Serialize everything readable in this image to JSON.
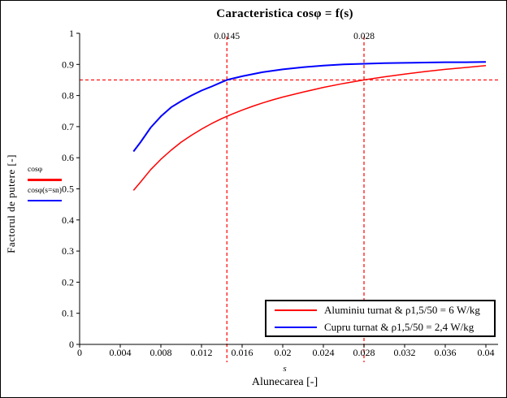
{
  "window": {
    "background_color": "#ffffff",
    "border_color": "#000000"
  },
  "chart": {
    "title": "Caracteristica cosφ = f(s)",
    "ylabel": "Factorul de putere [-]",
    "x_variable": "s",
    "xlabel": "Alunecarea [-]"
  },
  "curve_labels": {
    "items": [
      {
        "label": "cosφ",
        "color": "#ff0000"
      },
      {
        "label": "cosφ(s=sn)",
        "color": "#0000ff"
      }
    ]
  },
  "legend": {
    "items": [
      {
        "label": "Aluminiu turnat & ρ1,5/50 = 6 W/kg",
        "color": "#ff0000"
      },
      {
        "label": "Cupru turnat & ρ1,5/50 = 2,4 W/kg",
        "color": "#0000ff"
      }
    ]
  },
  "chart_data": {
    "type": "line",
    "title": "Caracteristica cosφ = f(s)",
    "xlabel": "Alunecarea [-]",
    "ylabel": "Factorul de putere [-]",
    "xlim": [
      0,
      0.04
    ],
    "ylim": [
      0,
      1
    ],
    "grid": false,
    "legend_position": "bottom-right",
    "x_ticks": [
      0,
      0.004,
      0.008,
      0.012,
      0.016,
      0.02,
      0.024,
      0.028,
      0.032,
      0.036,
      0.04
    ],
    "x_tick_labels": [
      "0",
      "0.004",
      "0.008",
      "0.012",
      "0.016",
      "0.02",
      "0.024",
      "0.028",
      "0.032",
      "0.036",
      "0.04"
    ],
    "y_ticks": [
      0,
      0.1,
      0.2,
      0.3,
      0.4,
      0.5,
      0.6,
      0.7,
      0.8,
      0.9,
      1
    ],
    "y_tick_labels": [
      "0",
      "0.1",
      "0.2",
      "0.3",
      "0.4",
      "0.5",
      "0.6",
      "0.7",
      "0.8",
      "0.9",
      "1"
    ],
    "series": [
      {
        "name": "Aluminiu turnat & ρ1,5/50 = 6 W/kg",
        "color": "#ff0000",
        "width": 1.5,
        "points": [
          [
            0.0053,
            0.495
          ],
          [
            0.006,
            0.522
          ],
          [
            0.007,
            0.562
          ],
          [
            0.008,
            0.595
          ],
          [
            0.009,
            0.624
          ],
          [
            0.01,
            0.65
          ],
          [
            0.011,
            0.672
          ],
          [
            0.012,
            0.692
          ],
          [
            0.013,
            0.71
          ],
          [
            0.014,
            0.726
          ],
          [
            0.015,
            0.74
          ],
          [
            0.016,
            0.753
          ],
          [
            0.017,
            0.765
          ],
          [
            0.018,
            0.776
          ],
          [
            0.019,
            0.786
          ],
          [
            0.02,
            0.795
          ],
          [
            0.022,
            0.811
          ],
          [
            0.024,
            0.826
          ],
          [
            0.026,
            0.839
          ],
          [
            0.028,
            0.85
          ],
          [
            0.03,
            0.86
          ],
          [
            0.032,
            0.869
          ],
          [
            0.034,
            0.877
          ],
          [
            0.036,
            0.884
          ],
          [
            0.038,
            0.89
          ],
          [
            0.04,
            0.896
          ]
        ]
      },
      {
        "name": "Cupru turnat & ρ1,5/50 = 2,4 W/kg",
        "color": "#0000ff",
        "width": 2,
        "points": [
          [
            0.0053,
            0.62
          ],
          [
            0.006,
            0.65
          ],
          [
            0.007,
            0.697
          ],
          [
            0.008,
            0.733
          ],
          [
            0.009,
            0.762
          ],
          [
            0.01,
            0.782
          ],
          [
            0.011,
            0.8
          ],
          [
            0.012,
            0.816
          ],
          [
            0.013,
            0.829
          ],
          [
            0.014,
            0.843
          ],
          [
            0.0145,
            0.85
          ],
          [
            0.016,
            0.862
          ],
          [
            0.018,
            0.875
          ],
          [
            0.02,
            0.884
          ],
          [
            0.022,
            0.891
          ],
          [
            0.024,
            0.896
          ],
          [
            0.026,
            0.9
          ],
          [
            0.028,
            0.902
          ],
          [
            0.03,
            0.904
          ],
          [
            0.032,
            0.905
          ],
          [
            0.034,
            0.906
          ],
          [
            0.036,
            0.907
          ],
          [
            0.038,
            0.907
          ],
          [
            0.04,
            0.908
          ]
        ]
      }
    ],
    "reference_lines": {
      "style": "dashed",
      "color": "#ff0000",
      "horizontal_y": 0.85,
      "vertical_x": [
        0.0145,
        0.028
      ]
    },
    "annotations": [
      {
        "text": "0.0145",
        "x": 0.0145
      },
      {
        "text": "0.028",
        "x": 0.028
      }
    ]
  }
}
